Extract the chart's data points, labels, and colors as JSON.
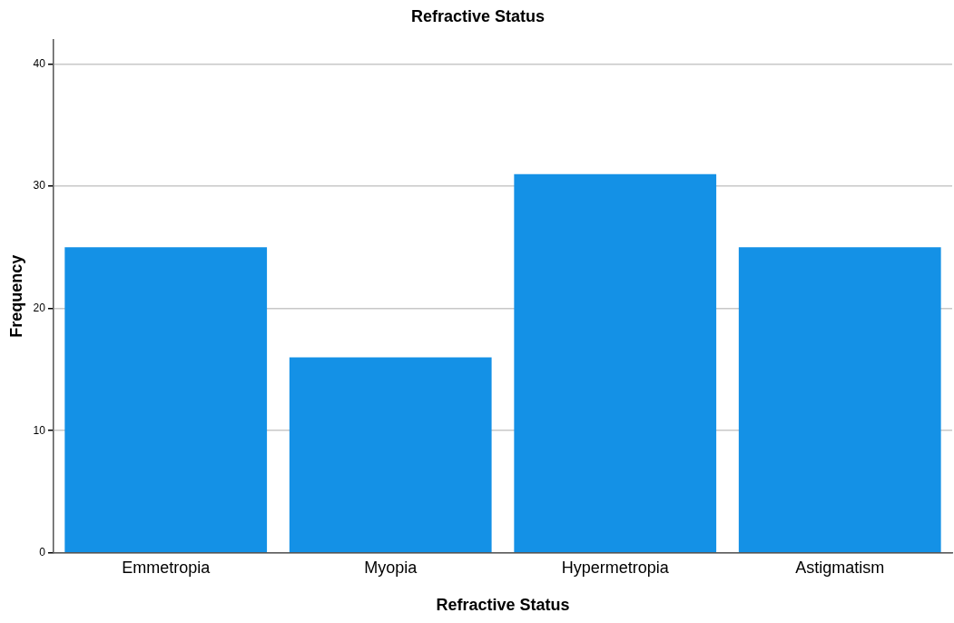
{
  "chart_data": {
    "type": "bar",
    "title": "Refractive Status",
    "xlabel": "Refractive Status",
    "ylabel": "Frequency",
    "categories": [
      "Emmetropia",
      "Myopia",
      "Hypermetropia",
      "Astigmatism"
    ],
    "values": [
      25,
      16,
      31,
      25
    ],
    "color": "#1491e6",
    "ylim": [
      0,
      42
    ],
    "yticks": [
      0,
      10,
      20,
      30,
      40
    ],
    "grid": "y"
  }
}
